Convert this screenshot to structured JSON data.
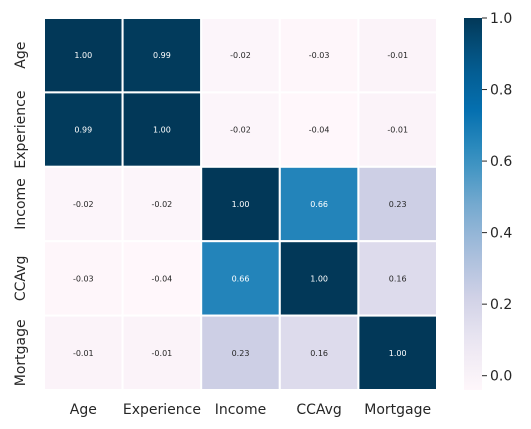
{
  "chart_data": {
    "type": "heatmap",
    "title": "",
    "xlabel": "",
    "ylabel": "",
    "x_categories": [
      "Age",
      "Experience",
      "Income",
      "CCAvg",
      "Mortgage"
    ],
    "y_categories": [
      "Age",
      "Experience",
      "Income",
      "CCAvg",
      "Mortgage"
    ],
    "values": [
      [
        1.0,
        0.99,
        -0.02,
        -0.03,
        -0.01
      ],
      [
        0.99,
        1.0,
        -0.02,
        -0.04,
        -0.01
      ],
      [
        -0.02,
        -0.02,
        1.0,
        0.66,
        0.23
      ],
      [
        -0.03,
        -0.04,
        0.66,
        1.0,
        0.16
      ],
      [
        -0.01,
        -0.01,
        0.23,
        0.16,
        1.0
      ]
    ],
    "labels": [
      [
        "1.00",
        "0.99",
        "-0.02",
        "-0.03",
        "-0.01"
      ],
      [
        "0.99",
        "1.00",
        "-0.02",
        "-0.04",
        "-0.01"
      ],
      [
        "-0.02",
        "-0.02",
        "1.00",
        "0.66",
        "0.23"
      ],
      [
        "-0.03",
        "-0.04",
        "0.66",
        "1.00",
        "0.16"
      ],
      [
        "-0.01",
        "-0.01",
        "0.23",
        "0.16",
        "1.00"
      ]
    ],
    "colormap": "PuBu",
    "vmin": -0.04,
    "vmax": 1.0,
    "colorbar": {
      "ticks": [
        0.0,
        0.2,
        0.4,
        0.6,
        0.8,
        1.0
      ],
      "tick_labels": [
        "0.0",
        "0.2",
        "0.4",
        "0.6",
        "0.8",
        "1.0"
      ]
    },
    "cell_border_color": "#ffffff",
    "grid": false,
    "legend": "colorbar-right"
  }
}
